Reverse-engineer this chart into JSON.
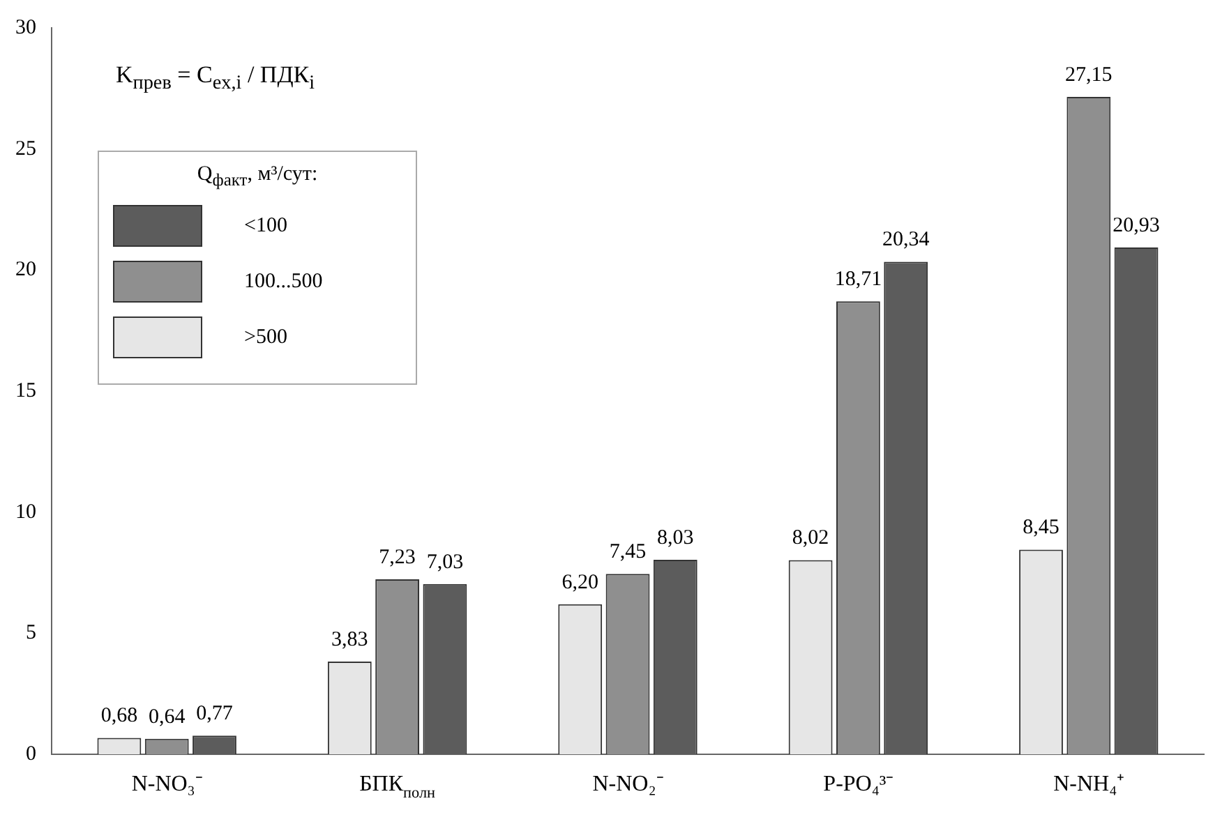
{
  "chart_data": {
    "type": "bar",
    "categories": [
      "N-NO₃⁻",
      "БПК$_{полн}$",
      "N-NO₂⁻",
      "P-PO₄³⁻",
      "N-NH₄⁺"
    ],
    "series": [
      {
        "name": ">500",
        "color": "#e6e6e6",
        "values": [
          0.68,
          3.83,
          6.2,
          8.02,
          8.45
        ],
        "value_labels": [
          "0,68",
          "3,83",
          "6,20",
          "8,02",
          "8,45"
        ]
      },
      {
        "name": "100...500",
        "color": "#8f8f8f",
        "values": [
          0.64,
          7.23,
          7.45,
          18.71,
          27.15
        ],
        "value_labels": [
          "0,64",
          "7,23",
          "7,45",
          "18,71",
          "27,15"
        ]
      },
      {
        "name": "<100",
        "color": "#5c5c5c",
        "values": [
          0.77,
          7.03,
          8.03,
          20.34,
          20.93
        ],
        "value_labels": [
          "0,77",
          "7,03",
          "8,03",
          "20,34",
          "20,93"
        ]
      }
    ],
    "ylim": [
      0,
      30
    ],
    "yticks": [
      0,
      5,
      10,
      15,
      20,
      25,
      30
    ],
    "grid": false,
    "legend": "top left",
    "legend_title": "Q$_{факт}$, м³/сут:",
    "annotations": [
      "K$_{прев}$ = C$_{ex,i}$ / ПДК$_{i}$"
    ]
  }
}
